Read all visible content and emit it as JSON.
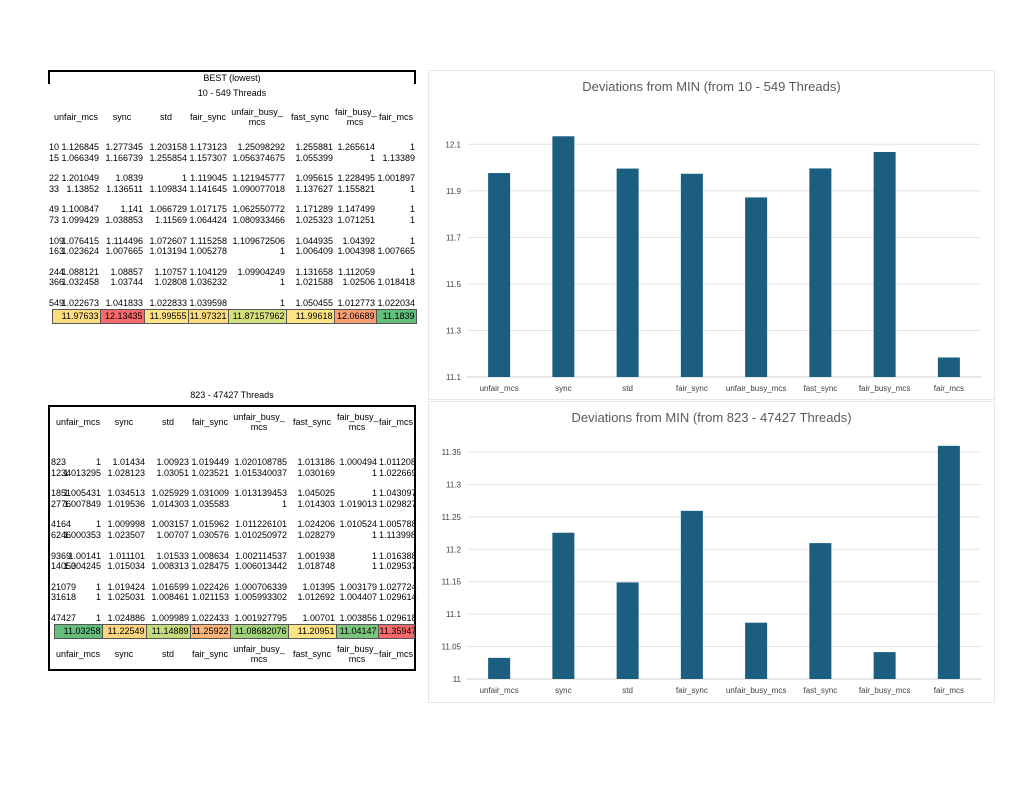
{
  "sheet1": {
    "heading": "BEST (lowest)",
    "range": "10 - 549 Threads",
    "headers": [
      "",
      "unfair_mcs",
      "sync",
      "std",
      "fair_sync",
      "unfair_busy_\nmcs",
      "fast_sync",
      "fair_busy_\nmcs",
      "fair_mcs"
    ],
    "rows": [
      [
        "10",
        "1.126845",
        "1.277345",
        "1.203158",
        "1.173123",
        "1.25098292",
        "1.255881",
        "1.265614",
        "1"
      ],
      [
        "15",
        "1.066349",
        "1.166739",
        "1.255854",
        "1.157307",
        "1.056374675",
        "1.055399",
        "1",
        "1.13389"
      ],
      null,
      [
        "22",
        "1.201049",
        "1.0839",
        "1",
        "1.119045",
        "1.121945777",
        "1.095615",
        "1.228495",
        "1.001897"
      ],
      [
        "33",
        "1.13852",
        "1.136511",
        "1.109834",
        "1.141645",
        "1.090077018",
        "1.137627",
        "1.155821",
        "1"
      ],
      null,
      [
        "49",
        "1.100847",
        "1.141",
        "1.066729",
        "1.017175",
        "1.062550772",
        "1.171289",
        "1.147499",
        "1"
      ],
      [
        "73",
        "1.099429",
        "1.038853",
        "1.11569",
        "1.064424",
        "1.080933466",
        "1.025323",
        "1.071251",
        "1"
      ],
      null,
      [
        "109",
        "1.076415",
        "1.114496",
        "1.072607",
        "1.115258",
        "1.109672506",
        "1.044935",
        "1.04392",
        "1"
      ],
      [
        "163",
        "1.023624",
        "1.007665",
        "1.013194",
        "1.005278",
        "1",
        "1.006409",
        "1.004398",
        "1.007665"
      ],
      null,
      [
        "244",
        "1.088121",
        "1.08857",
        "1.10757",
        "1.104129",
        "1.09904249",
        "1.131658",
        "1.112059",
        "1"
      ],
      [
        "366",
        "1.032458",
        "1.03744",
        "1.02808",
        "1.036232",
        "1",
        "1.021588",
        "1.02506",
        "1.018418"
      ],
      null,
      [
        "549",
        "1.022673",
        "1.041833",
        "1.022833",
        "1.039598",
        "1",
        "1.050455",
        "1.012773",
        "1.022034"
      ]
    ],
    "sums": [
      "11.97633",
      "12.13435",
      "11.99555",
      "11.97321",
      "11.87157962",
      "11.99618",
      "12.06689",
      "11.1839"
    ],
    "sum_colors": [
      "#fbdd7e",
      "#f8696b",
      "#fde383",
      "#fbdd7e",
      "#d5e07f",
      "#fde383",
      "#fa9f74",
      "#63be7b"
    ]
  },
  "sheet2": {
    "range": "823 - 47427 Threads",
    "headers": [
      "",
      "unfair_mcs",
      "sync",
      "std",
      "fair_sync",
      "unfair_busy_\nmcs",
      "fast_sync",
      "fair_busy_\nmcs",
      "fair_mcs"
    ],
    "rows": [
      null,
      [
        "823",
        "1",
        "1.01434",
        "1.00923",
        "1.019449",
        "1.020108785",
        "1.013186",
        "1.000494",
        "1.011208"
      ],
      [
        "1234",
        "1.013295",
        "1.028123",
        "1.03051",
        "1.023521",
        "1.015340037",
        "1.030169",
        "1",
        "1.022669"
      ],
      null,
      [
        "1851",
        "1.005431",
        "1.034513",
        "1.025929",
        "1.031009",
        "1.013139453",
        "1.045025",
        "1",
        "1.043097"
      ],
      [
        "2776",
        "1.007849",
        "1.019536",
        "1.014303",
        "1.035583",
        "1",
        "1.014303",
        "1.019013",
        "1.029827"
      ],
      null,
      [
        "4164",
        "1",
        "1.009998",
        "1.003157",
        "1.015962",
        "1.011226101",
        "1.024206",
        "1.010524",
        "1.005788"
      ],
      [
        "6246",
        "1.000353",
        "1.023507",
        "1.00707",
        "1.030576",
        "1.010250972",
        "1.028279",
        "1",
        "1.113998"
      ],
      null,
      [
        "9369",
        "1.00141",
        "1.011101",
        "1.01533",
        "1.008634",
        "1.002114537",
        "1.001938",
        "1",
        "1.016388"
      ],
      [
        "14053",
        "1.004245",
        "1.015034",
        "1.008313",
        "1.028475",
        "1.006013442",
        "1.018748",
        "1",
        "1.029537"
      ],
      null,
      [
        "21079",
        "1",
        "1.019424",
        "1.016599",
        "1.022426",
        "1.000706339",
        "1.01395",
        "1.003179",
        "1.027724"
      ],
      [
        "31618",
        "1",
        "1.025031",
        "1.008461",
        "1.021153",
        "1.005993302",
        "1.012692",
        "1.004407",
        "1.029614"
      ],
      null,
      [
        "47427",
        "1",
        "1.024886",
        "1.009989",
        "1.022433",
        "1.001927795",
        "1.00701",
        "1.003856",
        "1.029618"
      ]
    ],
    "sums": [
      "11.03258",
      "11.22549",
      "11.14889",
      "11.25922",
      "11.08682076",
      "11.20951",
      "11.04147",
      "11.35947"
    ],
    "sum_colors": [
      "#63be7b",
      "#fed480",
      "#c4dc7e",
      "#fcb479",
      "#9fd17c",
      "#fde383",
      "#7ac47d",
      "#f8696b"
    ],
    "footer": [
      "",
      "unfair_mcs",
      "sync",
      "std",
      "fair_sync",
      "unfair_busy_\nmcs",
      "fast_sync",
      "fair_busy_\nmcs",
      "fair_mcs"
    ]
  },
  "chart_data": [
    {
      "type": "bar",
      "title": "Deviations from MIN (from 10 - 549 Threads)",
      "categories": [
        "unfair_mcs",
        "sync",
        "std",
        "fair_sync",
        "unfair_busy_mcs",
        "fast_sync",
        "fair_busy_mcs",
        "fair_mcs"
      ],
      "values": [
        11.97633,
        12.13435,
        11.99555,
        11.97321,
        11.87158,
        11.99618,
        12.06689,
        11.1839
      ],
      "ylim": [
        11.1,
        12.2
      ],
      "yticks": [
        "11.1",
        "11.3",
        "11.5",
        "11.7",
        "11.9",
        "12.1"
      ],
      "grid": true,
      "color": "#1b5e80"
    },
    {
      "type": "bar",
      "title": "Deviations from MIN (from 823 - 47427 Threads)",
      "categories": [
        "unfair_mcs",
        "sync",
        "std",
        "fair_sync",
        "unfair_busy_mcs",
        "fast_sync",
        "fair_busy_mcs",
        "fair_mcs"
      ],
      "values": [
        11.03258,
        11.22549,
        11.14889,
        11.25922,
        11.08682,
        11.20951,
        11.04147,
        11.35947
      ],
      "ylim": [
        11.0,
        11.37
      ],
      "yticks": [
        "11",
        "11.05",
        "11.1",
        "11.15",
        "11.2",
        "11.25",
        "11.3",
        "11.35"
      ],
      "grid": true,
      "color": "#1b5e80"
    }
  ]
}
